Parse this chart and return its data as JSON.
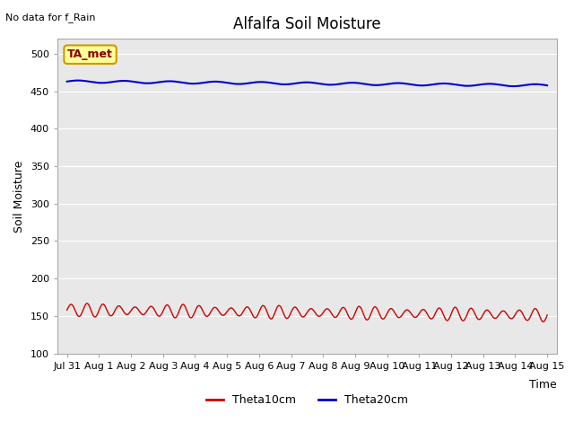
{
  "title": "Alfalfa Soil Moisture",
  "top_left_text": "No data for f_Rain",
  "annotation_text": "TA_met",
  "xlabel": "Time",
  "ylabel": "Soil Moisture",
  "ylim": [
    100,
    520
  ],
  "yticks": [
    100,
    150,
    200,
    250,
    300,
    350,
    400,
    450,
    500
  ],
  "x_labels": [
    "Jul 31",
    "Aug 1",
    "Aug 2",
    "Aug 3",
    "Aug 4",
    "Aug 5",
    "Aug 6",
    "Aug 7",
    "Aug 8",
    "Aug 9",
    "Aug 10",
    "Aug 11",
    "Aug 12",
    "Aug 13",
    "Aug 14",
    "Aug 15"
  ],
  "blue_line_color": "#0000cc",
  "red_line_color": "#cc0000",
  "background_color": "#e8e8e8",
  "annotation_bg": "#ffff99",
  "annotation_border": "#cc9900",
  "legend_labels": [
    "Theta10cm",
    "Theta20cm"
  ],
  "num_points": 1500
}
